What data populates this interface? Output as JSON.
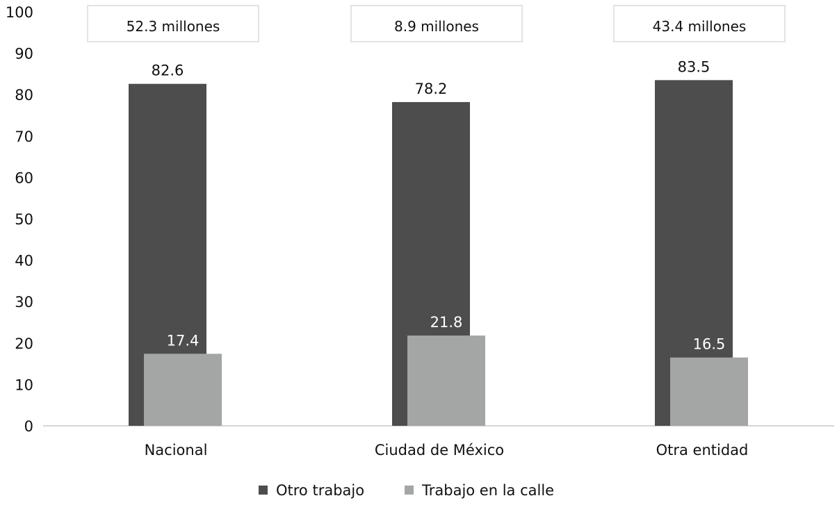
{
  "chart_data": {
    "type": "bar",
    "categories": [
      "Nacional",
      "Ciudad de México",
      "Otra entidad"
    ],
    "series": [
      {
        "name": "Otro trabajo",
        "values": [
          82.6,
          78.2,
          83.5
        ],
        "color": "#4d4d4d"
      },
      {
        "name": "Trabajo en la calle",
        "values": [
          17.4,
          21.8,
          16.5
        ],
        "color": "#a4a6a5"
      }
    ],
    "category_totals": [
      "52.3 millones",
      "8.9 millones",
      "43.4 millones"
    ],
    "yticks": [
      "0",
      "10",
      "20",
      "30",
      "40",
      "50",
      "60",
      "70",
      "80",
      "90",
      "100"
    ],
    "ylim": [
      0,
      100
    ],
    "grid": false,
    "legend_position": "bottom",
    "title": "",
    "xlabel": "",
    "ylabel": ""
  }
}
